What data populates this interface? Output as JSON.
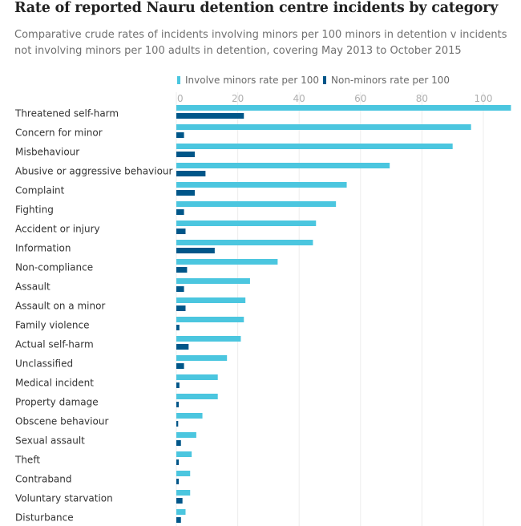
{
  "chart_data": {
    "type": "bar",
    "orientation": "horizontal",
    "title": "Rate of reported Nauru detention centre incidents by category",
    "subtitle": "Comparative crude rates of incidents involving minors per 100 minors in detention v incidents not involving minors per 100 adults in detention, covering May 2013 to October 2015",
    "categories": [
      "Threatened self-harm",
      "Concern for minor",
      "Misbehaviour",
      "Abusive or aggressive behaviour",
      "Complaint",
      "Fighting",
      "Accident or injury",
      "Information",
      "Non-compliance",
      "Assault",
      "Assault on a minor",
      "Family violence",
      "Actual self-harm",
      "Unclassified",
      "Medical incident",
      "Property damage",
      "Obscene behaviour",
      "Sexual assault",
      "Theft",
      "Contraband",
      "Voluntary starvation",
      "Disturbance"
    ],
    "series": [
      {
        "name": "Involve minors rate per 100",
        "color": "#4bc6df",
        "values": [
          109,
          96,
          90,
          69.5,
          55.5,
          52,
          45.5,
          44.5,
          33,
          24,
          22.5,
          22,
          21,
          16.5,
          13.5,
          13.5,
          8.5,
          6.5,
          5,
          4.5,
          4.5,
          3
        ]
      },
      {
        "name": "Non-minors rate per 100",
        "color": "#005689",
        "values": [
          22,
          2.5,
          6,
          9.5,
          6,
          2.5,
          3,
          12.5,
          3.5,
          2.5,
          3,
          1,
          4,
          2.5,
          1,
          0.8,
          0.6,
          1.5,
          0.8,
          0.8,
          2,
          1.5
        ]
      }
    ],
    "xlim": [
      0,
      110
    ],
    "ticks": [
      0,
      20,
      40,
      60,
      80,
      100
    ],
    "grid": true,
    "legend": "top"
  }
}
